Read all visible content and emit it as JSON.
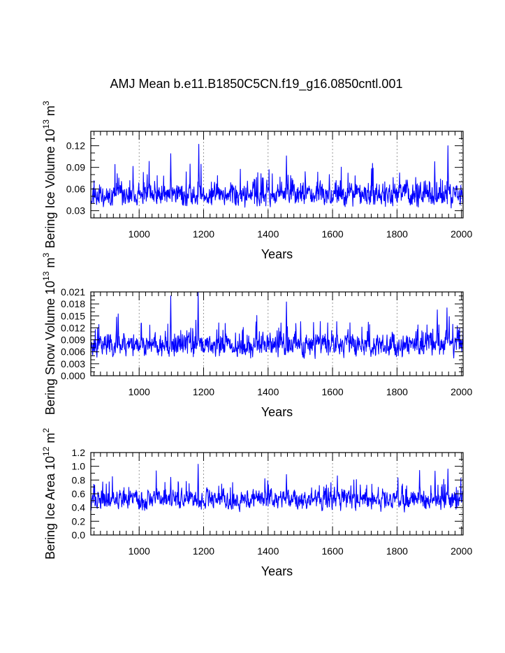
{
  "title": "AMJ Mean b.e11.B1850C5CN.f19_g16.0850cntl.001",
  "colors": {
    "series": "#0000ff",
    "axis": "#000000",
    "grid": "#808080",
    "background": "#ffffff"
  },
  "chart_data": [
    {
      "type": "line",
      "name": "ice-volume",
      "ylabel": {
        "main": "Bering Ice Volume 10",
        "exp": "13",
        "unit": " m",
        "unit_exp": "3"
      },
      "xlabel": "Years",
      "xlim": [
        850,
        2005
      ],
      "ylim": [
        0.02,
        0.14
      ],
      "xticks": [
        1000,
        1200,
        1400,
        1600,
        1800,
        2000
      ],
      "xtick_labels": [
        "1000",
        "1200",
        "1400",
        "1600",
        "1800",
        "2000"
      ],
      "yticks": [
        0.03,
        0.06,
        0.09,
        0.12
      ],
      "ytick_labels": [
        "0.03",
        "0.06",
        "0.09",
        "0.12"
      ],
      "x_minor_step": 20,
      "y_minor_step": 0.01,
      "grid": "vertical dashed at major x ticks",
      "series": [
        {
          "name": "Bering Ice Volume",
          "color": "#0000ff",
          "x_start": 850,
          "x_end": 2005,
          "base": 0.052,
          "noise": 0.012,
          "floor": 0.025,
          "seed": 11,
          "spikes": [
            [
              1098,
              0.109
            ],
            [
              1185,
              0.122
            ],
            [
              1457,
              0.106
            ],
            [
              1958,
              0.12
            ],
            [
              1917,
              0.098
            ],
            [
              1185,
              0.122
            ]
          ]
        }
      ]
    },
    {
      "type": "line",
      "name": "snow-volume",
      "ylabel": {
        "main": "Bering Snow Volume 10",
        "exp": "13",
        "unit": " m",
        "unit_exp": "3"
      },
      "xlabel": "Years",
      "xlim": [
        850,
        2005
      ],
      "ylim": [
        0.0,
        0.021
      ],
      "xticks": [
        1000,
        1200,
        1400,
        1600,
        1800,
        2000
      ],
      "xtick_labels": [
        "1000",
        "1200",
        "1400",
        "1600",
        "1800",
        "2000"
      ],
      "yticks": [
        0.0,
        0.003,
        0.006,
        0.009,
        0.012,
        0.015,
        0.018,
        0.021
      ],
      "ytick_labels": [
        "0.000",
        "0.003",
        "0.006",
        "0.009",
        "0.012",
        "0.015",
        "0.018",
        "0.021"
      ],
      "x_minor_step": 20,
      "y_minor_step": 0.001,
      "grid": "vertical dashed at major x ticks",
      "series": [
        {
          "name": "Bering Snow Volume",
          "color": "#0000ff",
          "x_start": 850,
          "x_end": 2005,
          "base": 0.0078,
          "noise": 0.0022,
          "floor": 0.0025,
          "seed": 23,
          "spikes": [
            [
              1098,
              0.02
            ],
            [
              1183,
              0.021
            ],
            [
              1457,
              0.0185
            ],
            [
              1955,
              0.017
            ],
            [
              1925,
              0.0165
            ],
            [
              935,
              0.0155
            ]
          ]
        }
      ]
    },
    {
      "type": "line",
      "name": "ice-area",
      "ylabel": {
        "main": "Bering Ice Area 10",
        "exp": "12",
        "unit": " m",
        "unit_exp": "2"
      },
      "xlabel": "Years",
      "xlim": [
        850,
        2005
      ],
      "ylim": [
        0.0,
        1.2
      ],
      "xticks": [
        1000,
        1200,
        1400,
        1600,
        1800,
        2000
      ],
      "xtick_labels": [
        "1000",
        "1200",
        "1400",
        "1600",
        "1800",
        "2000"
      ],
      "yticks": [
        0.0,
        0.2,
        0.4,
        0.6,
        0.8,
        1.0,
        1.2
      ],
      "ytick_labels": [
        "0.0",
        "0.2",
        "0.4",
        "0.6",
        "0.8",
        "1.0",
        "1.2"
      ],
      "x_minor_step": 20,
      "y_minor_step": 0.1,
      "grid": "vertical dashed at major x ticks",
      "series": [
        {
          "name": "Bering Ice Area",
          "color": "#0000ff",
          "x_start": 850,
          "x_end": 2005,
          "base": 0.52,
          "noise": 0.11,
          "floor": 0.17,
          "seed": 37,
          "spikes": [
            [
              1183,
              1.03
            ],
            [
              1958,
              0.96
            ],
            [
              1870,
              0.94
            ],
            [
              1918,
              0.93
            ],
            [
              1098,
              0.84
            ],
            [
              1457,
              0.88
            ]
          ]
        }
      ]
    }
  ]
}
